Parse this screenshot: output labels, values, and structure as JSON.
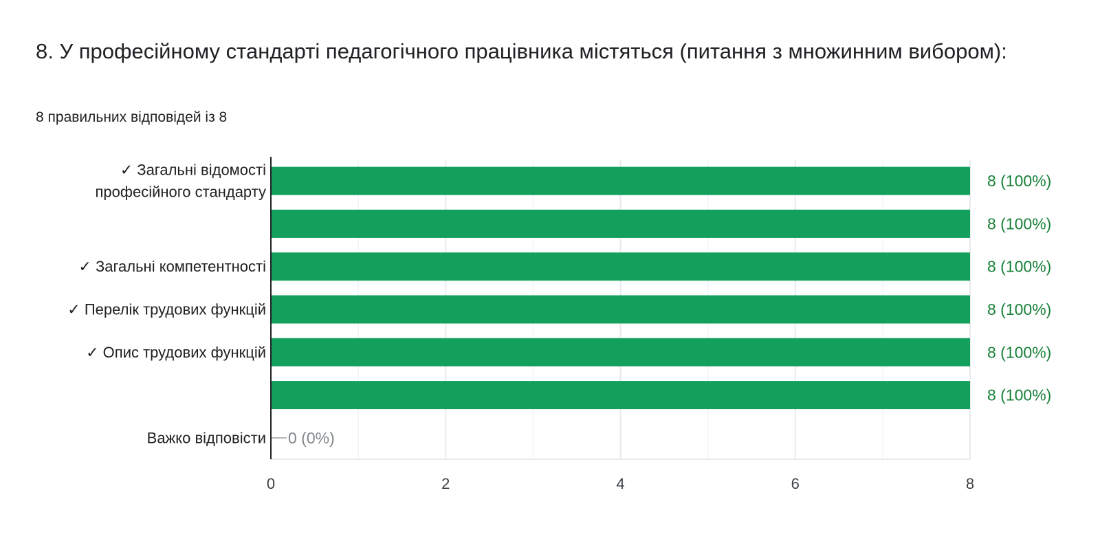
{
  "question": {
    "title": "8. У професійному стандарті педагогічного працівника містяться (питання з множинним вибором):",
    "score": "8 правильних відповідей із 8"
  },
  "colors": {
    "bar": "#12a05c",
    "value_label": "#188038",
    "zero_label": "#80868b",
    "grid": "#e8eaed",
    "axis": "#202124",
    "text": "#202124"
  },
  "chart_data": {
    "type": "bar",
    "orientation": "horizontal",
    "categories": [
      [
        "✓ Загальні відомості",
        "професійного стандарту"
      ],
      [],
      [
        "✓ Загальні компетентності"
      ],
      [
        "✓ Перелік трудових функцій"
      ],
      [
        "✓ Опис трудових функцій"
      ],
      [],
      [
        "Важко відповісти"
      ]
    ],
    "values": [
      8,
      8,
      8,
      8,
      8,
      8,
      0
    ],
    "value_labels": [
      "8 (100%)",
      "8 (100%)",
      "8 (100%)",
      "8 (100%)",
      "8 (100%)",
      "8 (100%)",
      "0 (0%)"
    ],
    "x_ticks": [
      0,
      2,
      4,
      6,
      8
    ],
    "xlim": [
      0,
      8
    ],
    "grid": true,
    "title": "",
    "xlabel": "",
    "ylabel": ""
  }
}
